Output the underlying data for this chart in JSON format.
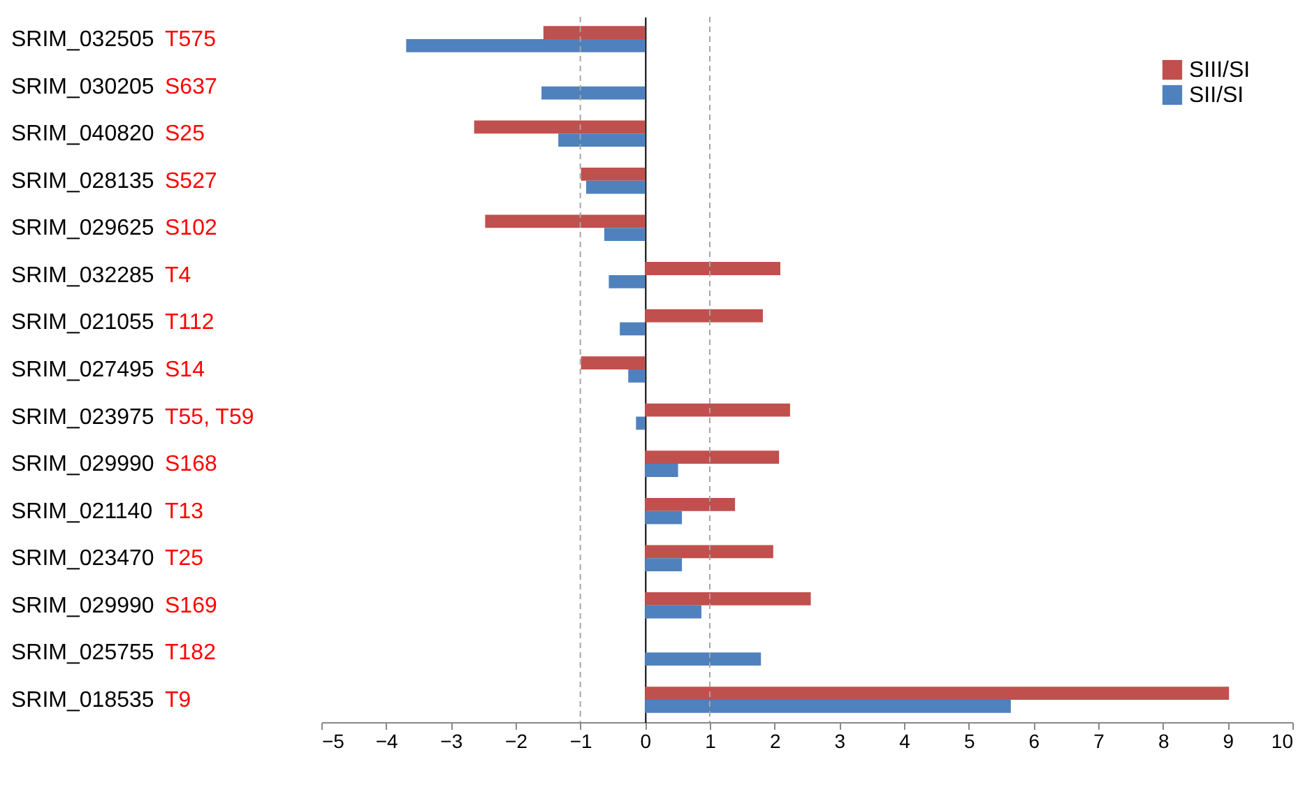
{
  "chart_data": {
    "type": "bar",
    "orientation": "horizontal",
    "categories": [
      "SRIM_032505 T575",
      "SRIM_030205 S637",
      "SRIM_040820 S25",
      "SRIM_028135 S527",
      "SRIM_029625 S102",
      "SRIM_032285 T4",
      "SRIM_021055 T112",
      "SRIM_027495 S14",
      "SRIM_023975 T55, T59",
      "SRIM_029990 S168",
      "SRIM_021140 T13",
      "SRIM_023470 T25",
      "SRIM_029990 S169",
      "SRIM_025755 T182",
      "SRIM_018535 T9"
    ],
    "series": [
      {
        "name": "SIII/SI",
        "color": "#c0504d",
        "values": [
          -1.57,
          null,
          -2.64,
          -0.99,
          -2.47,
          2.09,
          1.82,
          -0.99,
          2.24,
          2.07,
          1.39,
          1.98,
          2.56,
          null,
          9.02
        ]
      },
      {
        "name": "SII/SI",
        "color": "#4f81bd",
        "values": [
          -3.69,
          -1.6,
          -1.34,
          -0.91,
          -0.63,
          -0.56,
          -0.39,
          -0.26,
          -0.14,
          0.51,
          0.57,
          0.57,
          0.87,
          1.79,
          5.65
        ]
      }
    ],
    "xlim": [
      -5,
      10
    ],
    "xticks": [
      -5,
      -4,
      -3,
      -2,
      -1,
      0,
      1,
      2,
      3,
      4,
      5,
      6,
      7,
      8,
      9,
      10
    ],
    "ref_lines": [
      {
        "axis": "x",
        "value": -1,
        "color": "#a6a6a6",
        "line_style": "dashed"
      },
      {
        "axis": "x",
        "value": 1,
        "color": "#a6a6a6",
        "line_style": "dashed"
      }
    ],
    "grid": false,
    "legend": "top right"
  }
}
